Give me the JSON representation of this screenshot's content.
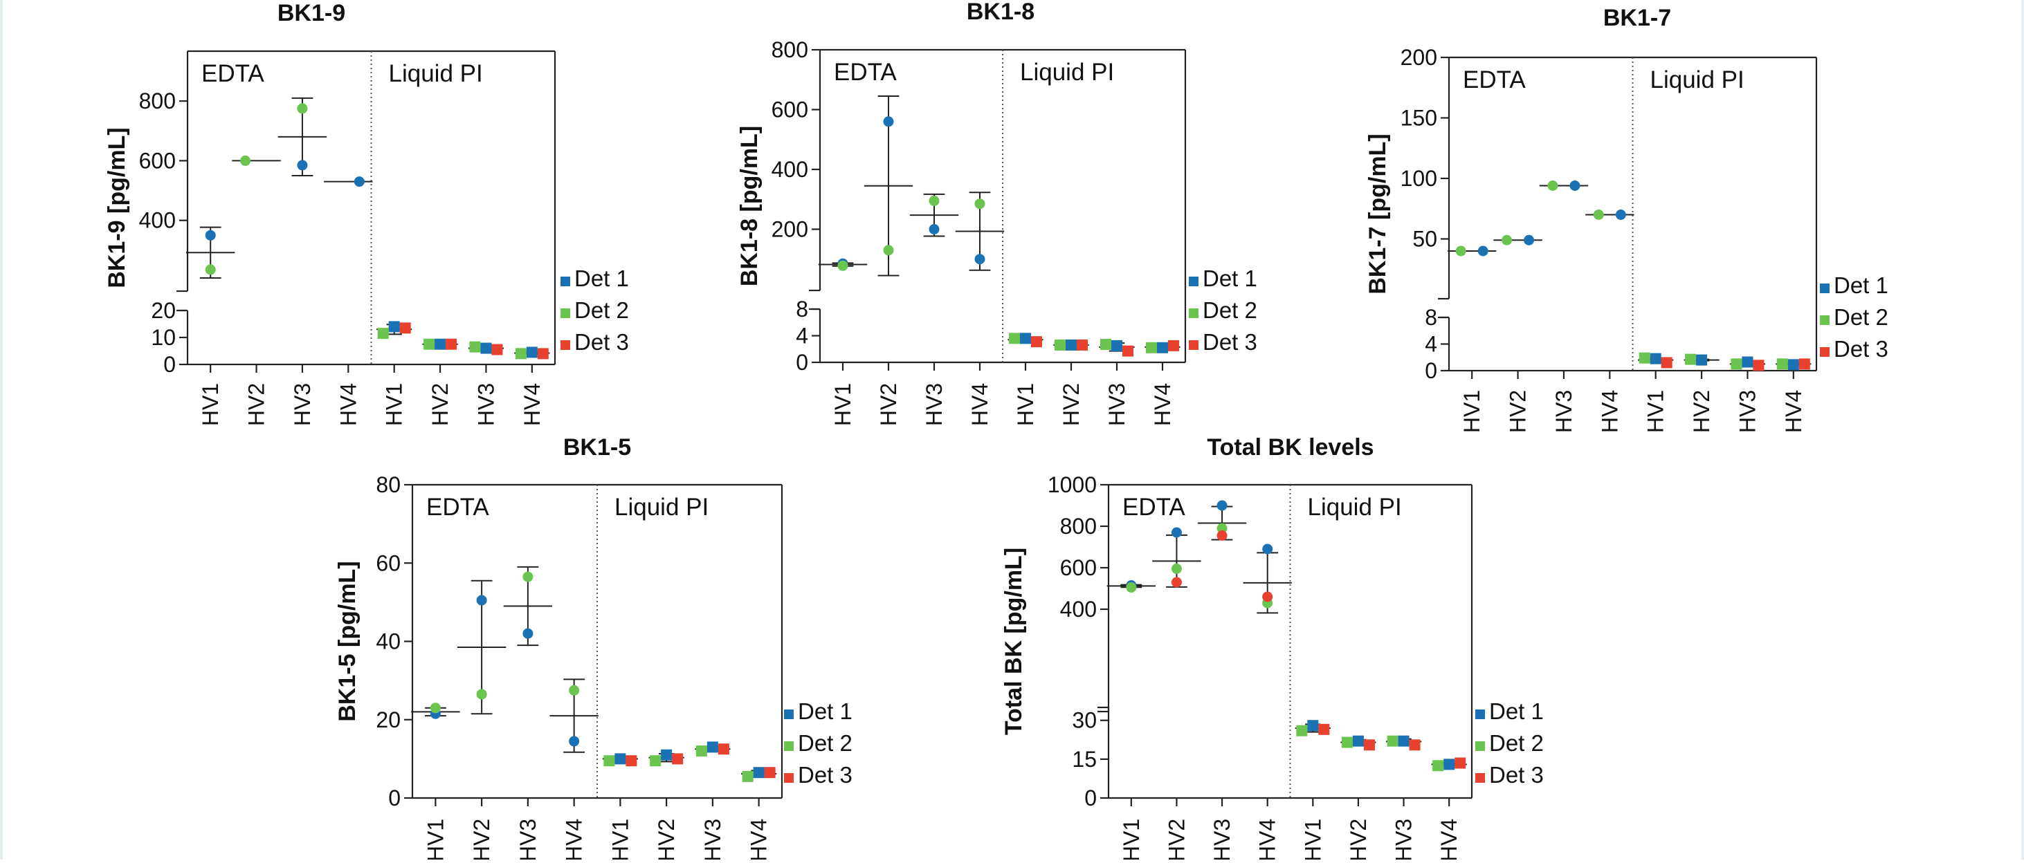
{
  "colors": {
    "det1": "#1a72b4",
    "det2": "#6ac44f",
    "det3": "#e8412f",
    "axis": "#222222"
  },
  "legend": [
    {
      "label": "Det 1",
      "color": "#1a72b4"
    },
    {
      "label": "Det 2",
      "color": "#6ac44f"
    },
    {
      "label": "Det 3",
      "color": "#e8412f"
    }
  ],
  "chart_data": [
    {
      "type": "scatter",
      "title": "BK1-9",
      "ylabel": "BK1-9 [pg/mL]",
      "groups": [
        "EDTA",
        "Liquid PI"
      ],
      "categories": [
        "HV1",
        "HV2",
        "HV3",
        "HV4",
        "HV1",
        "HV2",
        "HV3",
        "HV4"
      ],
      "broken_axis": {
        "lower_range": [
          0,
          20
        ],
        "lower_ticks": [
          0,
          10,
          20
        ],
        "upper_range": [
          200,
          900
        ],
        "upper_ticks": [
          400,
          600,
          800
        ]
      },
      "series": [
        {
          "name": "Det 1",
          "values": [
            350,
            null,
            585,
            530,
            14,
            7.5,
            6,
            4.5
          ]
        },
        {
          "name": "Det 2",
          "values": [
            235,
            600,
            775,
            null,
            11.5,
            7.5,
            6.5,
            4
          ]
        },
        {
          "name": "Det 3",
          "values": [
            null,
            null,
            null,
            null,
            13.5,
            7.5,
            5.5,
            4
          ]
        }
      ],
      "mean": [
        292,
        600,
        680,
        530,
        13,
        7.5,
        6,
        4.2
      ],
      "sd": [
        85,
        0,
        130,
        0,
        1.8,
        0.3,
        0.8,
        0.4
      ]
    },
    {
      "type": "scatter",
      "title": "BK1-8",
      "ylabel": "BK1-8 [pg/mL]",
      "groups": [
        "EDTA",
        "Liquid PI"
      ],
      "categories": [
        "HV1",
        "HV2",
        "HV3",
        "HV4",
        "HV1",
        "HV2",
        "HV3",
        "HV4"
      ],
      "broken_axis": {
        "lower_range": [
          0,
          8
        ],
        "lower_ticks": [
          0,
          4,
          8
        ],
        "upper_range": [
          0,
          800
        ],
        "upper_ticks": [
          200,
          400,
          600,
          800
        ]
      },
      "series": [
        {
          "name": "Det 1",
          "values": [
            85,
            560,
            200,
            100,
            3.6,
            2.6,
            2.5,
            2.2
          ]
        },
        {
          "name": "Det 2",
          "values": [
            78,
            130,
            295,
            285,
            3.6,
            2.6,
            2.7,
            2.2
          ]
        },
        {
          "name": "Det 3",
          "values": [
            null,
            null,
            null,
            null,
            3.1,
            2.6,
            1.7,
            2.5
          ]
        }
      ],
      "mean": [
        82,
        345,
        247,
        193,
        3.4,
        2.6,
        2.3,
        2.3
      ],
      "sd": [
        5,
        300,
        70,
        130,
        0.3,
        0.2,
        0.6,
        0.2
      ]
    },
    {
      "type": "scatter",
      "title": "BK1-7",
      "ylabel": "BK1-7 [pg/mL]",
      "groups": [
        "EDTA",
        "Liquid PI"
      ],
      "categories": [
        "HV1",
        "HV2",
        "HV3",
        "HV4",
        "HV1",
        "HV2",
        "HV3",
        "HV4"
      ],
      "broken_axis": {
        "lower_range": [
          0,
          8
        ],
        "lower_ticks": [
          0,
          4,
          8
        ],
        "upper_range": [
          0,
          200
        ],
        "upper_ticks": [
          50,
          100,
          150,
          200
        ]
      },
      "series": [
        {
          "name": "Det 1",
          "values": [
            40,
            49,
            94,
            70,
            1.8,
            1.6,
            1.3,
            0.9
          ]
        },
        {
          "name": "Det 2",
          "values": [
            40,
            49,
            94,
            70,
            1.9,
            1.7,
            1.0,
            1.0
          ]
        },
        {
          "name": "Det 3",
          "values": [
            null,
            null,
            null,
            null,
            1.2,
            null,
            0.8,
            1.0
          ]
        }
      ],
      "mean": [
        40,
        49,
        94,
        70,
        1.6,
        1.6,
        1.0,
        1.0
      ],
      "sd": [
        0,
        0,
        0,
        0,
        0.3,
        0.1,
        0.2,
        0.1
      ]
    },
    {
      "type": "scatter",
      "title": "BK1-5",
      "ylabel": "BK1-5 [pg/mL]",
      "groups": [
        "EDTA",
        "Liquid PI"
      ],
      "categories": [
        "HV1",
        "HV2",
        "HV3",
        "HV4",
        "HV1",
        "HV2",
        "HV3",
        "HV4"
      ],
      "ylim": [
        0,
        80
      ],
      "yticks": [
        0,
        20,
        40,
        60,
        80
      ],
      "series": [
        {
          "name": "Det 1",
          "values": [
            21.5,
            50.5,
            42,
            14.5,
            10,
            11,
            13,
            6.5
          ]
        },
        {
          "name": "Det 2",
          "values": [
            23,
            26.5,
            56.5,
            27.5,
            9.5,
            9.5,
            12,
            5.5
          ]
        },
        {
          "name": "Det 3",
          "values": [
            null,
            null,
            null,
            null,
            9.5,
            10,
            12.5,
            6.5
          ]
        }
      ],
      "mean": [
        22,
        38.5,
        49,
        21,
        10,
        10.3,
        12.5,
        6.2
      ],
      "sd": [
        1,
        17,
        10,
        9.3,
        0.6,
        1,
        0.6,
        0.8
      ]
    },
    {
      "type": "scatter",
      "title": "Total BK levels",
      "ylabel": "Total BK [pg/mL]",
      "groups": [
        "EDTA",
        "Liquid PI"
      ],
      "categories": [
        "HV1",
        "HV2",
        "HV3",
        "HV4",
        "HV1",
        "HV2",
        "HV3",
        "HV4"
      ],
      "broken_axis": {
        "lower_range": [
          0,
          35
        ],
        "lower_ticks": [
          0,
          15,
          30
        ],
        "upper_range": [
          0,
          1000
        ],
        "upper_ticks": [
          400,
          600,
          800,
          1000
        ]
      },
      "series": [
        {
          "name": "Det 1",
          "values": [
            515,
            770,
            900,
            690,
            28,
            22,
            22,
            13
          ]
        },
        {
          "name": "Det 2",
          "values": [
            505,
            595,
            790,
            430,
            26,
            21.5,
            22,
            12.5
          ]
        },
        {
          "name": "Det 3",
          "values": [
            null,
            530,
            755,
            460,
            26.5,
            20.5,
            20.5,
            13.5
          ]
        }
      ],
      "mean": [
        512,
        632,
        815,
        527,
        27,
        21.5,
        21.8,
        13
      ],
      "sd": [
        6,
        125,
        80,
        145,
        1.5,
        1,
        1,
        0.5
      ]
    }
  ]
}
